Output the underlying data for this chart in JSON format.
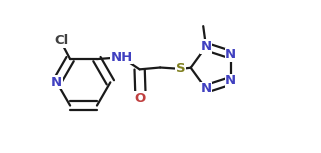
{
  "bg_color": "#ffffff",
  "bond_color": "#1a1a1a",
  "atom_colors": {
    "N": "#4040c0",
    "O": "#c04040",
    "S": "#808020",
    "Cl": "#404040",
    "C": "#1a1a1a",
    "H": "#1a1a1a"
  },
  "font_size_atoms": 9.5,
  "figsize": [
    3.21,
    1.53
  ],
  "dpi": 100
}
